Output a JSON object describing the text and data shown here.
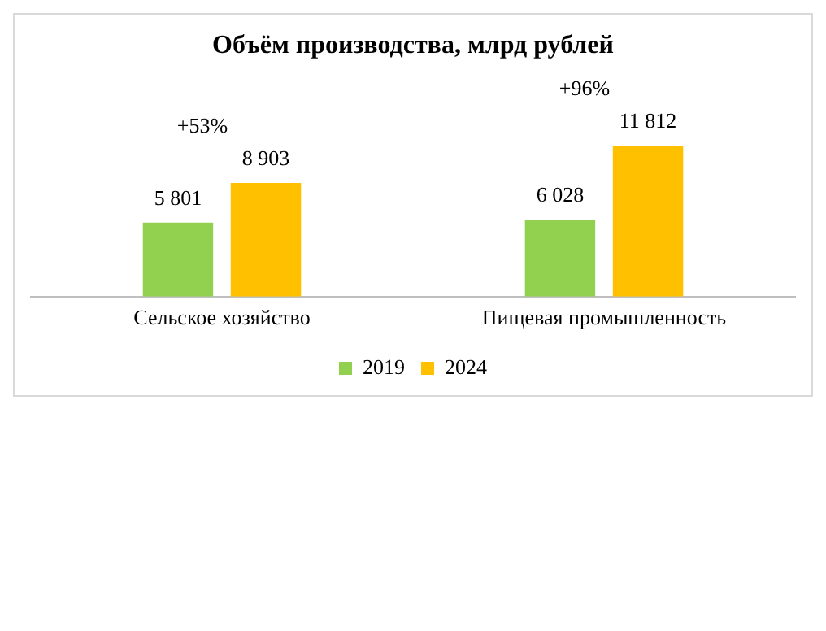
{
  "chart_data": {
    "type": "bar",
    "title": "Объём производства, млрд рублей",
    "categories": [
      "Сельское хозяйство",
      "Пищевая промышленность"
    ],
    "series": [
      {
        "name": "2019",
        "color": "#92d050",
        "values": [
          5801,
          6028
        ],
        "value_labels": [
          "5 801",
          "6 028"
        ]
      },
      {
        "name": "2024",
        "color": "#ffc000",
        "values": [
          8903,
          11812
        ],
        "value_labels": [
          "8 903",
          "11 812"
        ]
      }
    ],
    "annotations": [
      "+53%",
      "+96%"
    ],
    "legend": "bottom",
    "grid": false
  }
}
